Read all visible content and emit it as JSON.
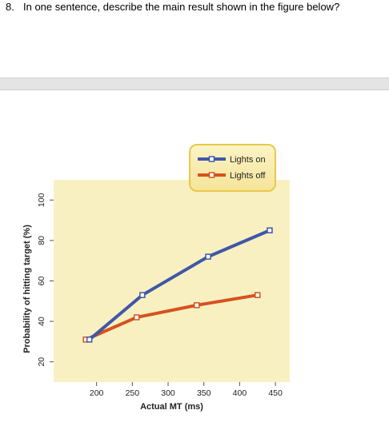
{
  "question": {
    "number": "8.",
    "text": "In one sentence, describe the main result shown in the figure below?"
  },
  "chart_data": {
    "type": "line",
    "xlabel": "Actual MT (ms)",
    "ylabel": "Probability of hitting target (%)",
    "xlim": [
      140,
      470
    ],
    "ylim": [
      10,
      110
    ],
    "xticks": [
      200,
      250,
      300,
      350,
      400,
      450
    ],
    "yticks": [
      20,
      40,
      60,
      80,
      100
    ],
    "plot_background": "#f9f0c2",
    "legend_position": "top-right",
    "series": [
      {
        "name": "Lights on",
        "color": "#3f57a8",
        "x": [
          190,
          264,
          356,
          442
        ],
        "y": [
          31,
          53,
          72,
          85
        ]
      },
      {
        "name": "Lights off",
        "color": "#d5521f",
        "x": [
          185,
          256,
          340,
          425
        ],
        "y": [
          31,
          42,
          48,
          53
        ]
      }
    ]
  }
}
